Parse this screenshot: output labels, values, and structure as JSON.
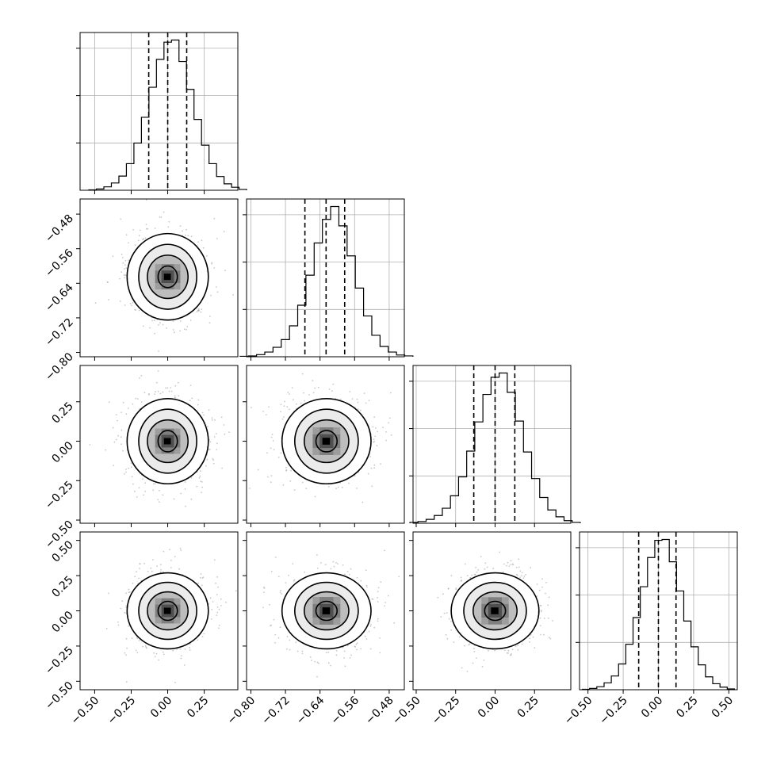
{
  "chart_data": {
    "type": "corner",
    "parameters": [
      {
        "range": [
          -0.6,
          0.48
        ],
        "ticks": [
          -0.5,
          -0.25,
          0.0,
          0.25
        ],
        "tick_labels": [
          "−0.50",
          "−0.25",
          "0.00",
          "0.25"
        ],
        "mean": 0.0,
        "sigma": 0.135
      },
      {
        "range": [
          -0.81,
          -0.445
        ],
        "ticks": [
          -0.8,
          -0.72,
          -0.64,
          -0.56,
          -0.48
        ],
        "tick_labels": [
          "−0.80",
          "−0.72",
          "−0.64",
          "−0.56",
          "−0.48"
        ],
        "mean": -0.625,
        "sigma": 0.05
      },
      {
        "range": [
          -0.52,
          0.48
        ],
        "ticks": [
          -0.5,
          -0.25,
          0.0,
          0.25
        ],
        "tick_labels": [
          "−0.50",
          "−0.25",
          "0.00",
          "0.25"
        ],
        "mean": 0.0,
        "sigma": 0.135
      },
      {
        "range": [
          -0.56,
          0.56
        ],
        "ticks": [
          -0.5,
          -0.25,
          0.0,
          0.25,
          0.5
        ],
        "tick_labels": [
          "−0.50",
          "−0.25",
          "0.00",
          "0.25",
          "0.50"
        ],
        "mean": 0.0,
        "sigma": 0.135
      }
    ],
    "histograms": [
      {
        "quantiles": [
          -0.13,
          0.0,
          0.13
        ],
        "counts": [
          1,
          3,
          8,
          17,
          33,
          62,
          110,
          170,
          240,
          305,
          345,
          350,
          300,
          235,
          165,
          105,
          62,
          32,
          15,
          7,
          2
        ]
      },
      {
        "quantiles": [
          -0.675,
          -0.626,
          -0.583
        ],
        "counts": [
          1,
          2,
          5,
          11,
          22,
          40,
          72,
          120,
          190,
          265,
          320,
          350,
          305,
          235,
          160,
          95,
          50,
          24,
          11,
          4,
          2
        ]
      },
      {
        "quantiles": [
          -0.135,
          0.0,
          0.125
        ],
        "counts": [
          2,
          4,
          9,
          18,
          35,
          64,
          108,
          168,
          236,
          300,
          340,
          350,
          305,
          238,
          166,
          104,
          60,
          31,
          15,
          6,
          2
        ]
      },
      {
        "quantiles": [
          -0.14,
          0.0,
          0.125
        ],
        "counts": [
          1,
          3,
          7,
          16,
          32,
          60,
          106,
          168,
          240,
          308,
          348,
          350,
          298,
          230,
          160,
          100,
          58,
          30,
          14,
          6,
          2
        ]
      }
    ],
    "contour_levels": [
      "0.5 sigma",
      "1 sigma",
      "1.5 sigma",
      "2 sigma"
    ],
    "grid": true,
    "colors": {
      "line": "#000000",
      "points": "#9a9a9a",
      "grid": "#b0b0b0",
      "density_dark": "#2a2a2a",
      "density_light": "#f2f2f2"
    }
  }
}
